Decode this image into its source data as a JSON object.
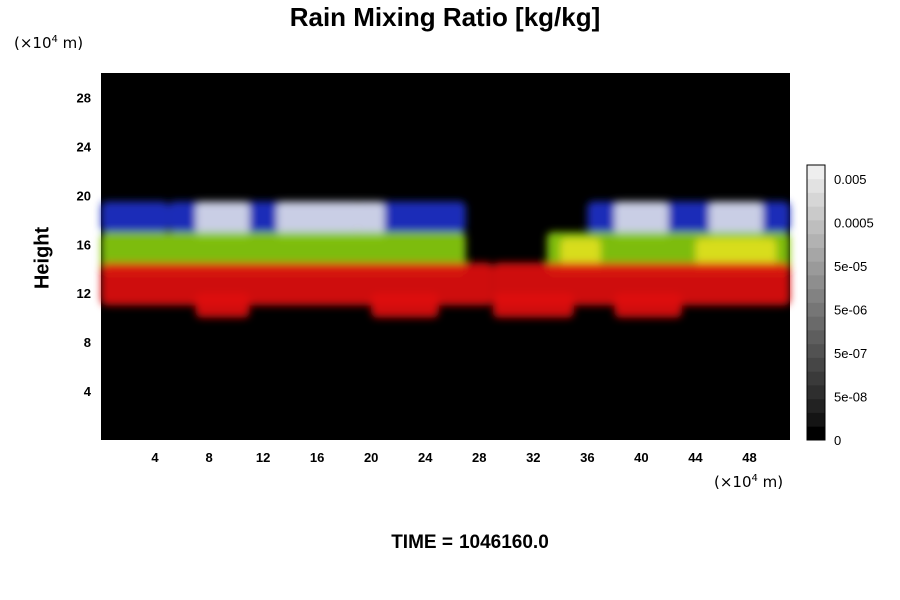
{
  "chart_data": {
    "type": "heatmap",
    "title": "Rain Mixing Ratio [kg/kg]",
    "xlabel": "",
    "ylabel": "Height",
    "x_unit": "(×10",
    "x_unit_exp": "4",
    "x_unit_tail": " m)",
    "y_unit": "(×10",
    "y_unit_exp": "4",
    "y_unit_tail": " m)",
    "xlim": [
      0,
      51
    ],
    "ylim": [
      0,
      30
    ],
    "x_ticks": [
      4,
      8,
      12,
      16,
      20,
      24,
      28,
      32,
      36,
      40,
      44,
      48
    ],
    "y_ticks": [
      4,
      8,
      12,
      16,
      20,
      24,
      28
    ],
    "background": "#000000",
    "bands": [
      {
        "color": "#2030c8",
        "y_range": [
          17,
          19.5
        ],
        "segments": [
          [
            0,
            5
          ],
          [
            5,
            19
          ],
          [
            19,
            27
          ],
          [
            36,
            51
          ]
        ]
      },
      {
        "color": "#d8dce8",
        "y_range": [
          16.5,
          19.5
        ],
        "segments": [
          [
            7,
            11
          ],
          [
            13,
            21
          ],
          [
            38,
            42
          ],
          [
            45,
            49
          ]
        ]
      },
      {
        "color": "#88cc10",
        "y_range": [
          13.5,
          17
        ],
        "segments": [
          [
            0,
            27
          ],
          [
            33,
            51
          ]
        ]
      },
      {
        "color": "#e0e020",
        "y_range": [
          14,
          16.5
        ],
        "segments": [
          [
            34,
            37
          ],
          [
            44,
            50
          ]
        ]
      },
      {
        "color": "#e01010",
        "y_range": [
          11,
          14.5
        ],
        "segments": [
          [
            0,
            29
          ],
          [
            29,
            51
          ]
        ]
      },
      {
        "color": "#e01010",
        "y_range": [
          10,
          12
        ],
        "segments": [
          [
            7,
            11
          ],
          [
            20,
            25
          ],
          [
            29,
            35
          ],
          [
            38,
            43
          ]
        ]
      }
    ],
    "colorbar": {
      "tick_labels": [
        "0.005",
        "0.0005",
        "5e-05",
        "5e-06",
        "5e-07",
        "5e-08",
        "0"
      ],
      "tick_values": [
        0.005,
        0.0005,
        5e-05,
        5e-06,
        5e-07,
        5e-08,
        0
      ],
      "colors": [
        "#000000",
        "#141414",
        "#222222",
        "#2e2e2e",
        "#3a3a3a",
        "#464646",
        "#525252",
        "#5e5e5e",
        "#6a6a6a",
        "#767676",
        "#828282",
        "#8e8e8e",
        "#9a9a9a",
        "#a6a6a6",
        "#b2b2b2",
        "#bebebe",
        "#cacaca",
        "#d6d6d6",
        "#e2e2e2",
        "#eeeeee"
      ]
    }
  },
  "footer": {
    "time_label": "TIME =",
    "time_value": "1046160.0"
  }
}
